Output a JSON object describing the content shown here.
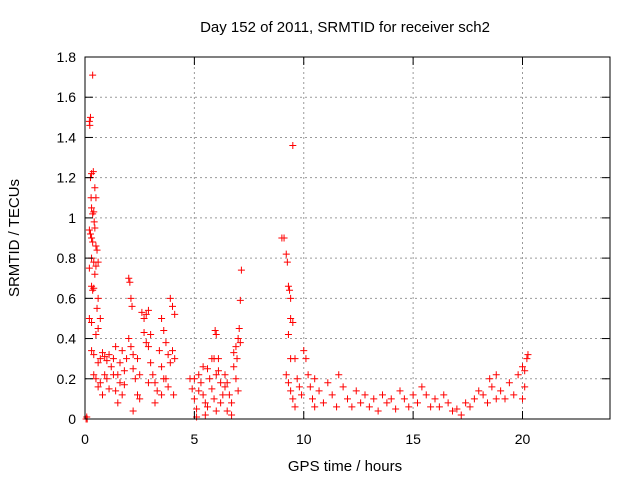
{
  "chart_data": {
    "type": "scatter",
    "title": "Day 152 of 2011, SRMTID for receiver sch2",
    "xlabel": "GPS time / hours",
    "ylabel": "SRMTID / TECUs",
    "xlim": [
      0,
      24
    ],
    "ylim": [
      0,
      1.8
    ],
    "xticks": [
      0,
      5,
      10,
      15,
      20
    ],
    "xtick_labels": [
      "0",
      "5",
      "10",
      "15",
      "20"
    ],
    "yticks": [
      0,
      0.2,
      0.4,
      0.6,
      0.8,
      1.0,
      1.2,
      1.4,
      1.6,
      1.8
    ],
    "ytick_labels": [
      "0",
      "0.2",
      "0.4",
      "0.6",
      "0.8",
      "1",
      "1.2",
      "1.4",
      "1.6",
      "1.8"
    ],
    "grid": true,
    "marker": "plus",
    "color": "#ff0000",
    "series": [
      {
        "name": "sch2",
        "points": [
          [
            0.05,
            0.0
          ],
          [
            0.08,
            0.01
          ],
          [
            0.1,
            0.0
          ],
          [
            0.2,
            1.48
          ],
          [
            0.22,
            1.46
          ],
          [
            0.25,
            1.5
          ],
          [
            0.35,
            1.71
          ],
          [
            0.25,
            1.2
          ],
          [
            0.3,
            1.22
          ],
          [
            0.38,
            1.23
          ],
          [
            0.28,
            1.1
          ],
          [
            0.3,
            1.05
          ],
          [
            0.35,
            1.02
          ],
          [
            0.4,
            1.03
          ],
          [
            0.45,
            1.15
          ],
          [
            0.5,
            1.1
          ],
          [
            0.42,
            0.98
          ],
          [
            0.2,
            0.94
          ],
          [
            0.25,
            0.92
          ],
          [
            0.3,
            0.9
          ],
          [
            0.35,
            0.88
          ],
          [
            0.45,
            0.95
          ],
          [
            0.5,
            0.86
          ],
          [
            0.55,
            0.84
          ],
          [
            0.2,
            0.75
          ],
          [
            0.3,
            0.8
          ],
          [
            0.4,
            0.78
          ],
          [
            0.5,
            0.76
          ],
          [
            0.6,
            0.78
          ],
          [
            0.45,
            0.72
          ],
          [
            0.3,
            0.66
          ],
          [
            0.35,
            0.64
          ],
          [
            0.4,
            0.65
          ],
          [
            0.6,
            0.6
          ],
          [
            0.55,
            0.55
          ],
          [
            0.2,
            0.5
          ],
          [
            0.3,
            0.48
          ],
          [
            0.6,
            0.45
          ],
          [
            0.5,
            0.42
          ],
          [
            0.7,
            0.5
          ],
          [
            0.3,
            0.34
          ],
          [
            0.4,
            0.32
          ],
          [
            0.6,
            0.28
          ],
          [
            0.7,
            0.3
          ],
          [
            0.8,
            0.33
          ],
          [
            0.9,
            0.31
          ],
          [
            1.0,
            0.29
          ],
          [
            1.1,
            0.32
          ],
          [
            0.4,
            0.22
          ],
          [
            0.5,
            0.2
          ],
          [
            0.6,
            0.16
          ],
          [
            0.7,
            0.18
          ],
          [
            0.8,
            0.12
          ],
          [
            0.9,
            0.22
          ],
          [
            1.0,
            0.2
          ],
          [
            1.1,
            0.15
          ],
          [
            1.2,
            0.26
          ],
          [
            1.3,
            0.3
          ],
          [
            1.4,
            0.36
          ],
          [
            1.5,
            0.22
          ],
          [
            1.6,
            0.18
          ],
          [
            1.7,
            0.12
          ],
          [
            1.8,
            0.24
          ],
          [
            1.9,
            0.3
          ],
          [
            1.3,
            0.22
          ],
          [
            1.4,
            0.14
          ],
          [
            1.5,
            0.08
          ],
          [
            1.6,
            0.28
          ],
          [
            1.7,
            0.34
          ],
          [
            1.8,
            0.17
          ],
          [
            2.0,
            0.7
          ],
          [
            2.05,
            0.68
          ],
          [
            2.1,
            0.6
          ],
          [
            2.15,
            0.56
          ],
          [
            2.0,
            0.4
          ],
          [
            2.1,
            0.36
          ],
          [
            2.2,
            0.32
          ],
          [
            2.2,
            0.25
          ],
          [
            2.3,
            0.2
          ],
          [
            2.4,
            0.12
          ],
          [
            2.4,
            0.3
          ],
          [
            2.5,
            0.22
          ],
          [
            2.2,
            0.04
          ],
          [
            2.6,
            0.53
          ],
          [
            2.7,
            0.5
          ],
          [
            2.8,
            0.52
          ],
          [
            2.9,
            0.54
          ],
          [
            2.7,
            0.43
          ],
          [
            2.8,
            0.38
          ],
          [
            2.9,
            0.36
          ],
          [
            3.0,
            0.42
          ],
          [
            3.0,
            0.28
          ],
          [
            3.1,
            0.22
          ],
          [
            3.2,
            0.18
          ],
          [
            3.3,
            0.14
          ],
          [
            3.4,
            0.34
          ],
          [
            3.5,
            0.26
          ],
          [
            3.6,
            0.2
          ],
          [
            3.5,
            0.5
          ],
          [
            3.6,
            0.44
          ],
          [
            3.7,
            0.38
          ],
          [
            3.8,
            0.32
          ],
          [
            3.9,
            0.28
          ],
          [
            3.7,
            0.2
          ],
          [
            3.8,
            0.16
          ],
          [
            3.9,
            0.6
          ],
          [
            4.0,
            0.56
          ],
          [
            4.1,
            0.52
          ],
          [
            4.0,
            0.34
          ],
          [
            4.1,
            0.3
          ],
          [
            4.05,
            0.12
          ],
          [
            2.5,
            0.1
          ],
          [
            2.9,
            0.18
          ],
          [
            3.2,
            0.08
          ],
          [
            3.5,
            0.12
          ],
          [
            4.8,
            0.2
          ],
          [
            4.9,
            0.15
          ],
          [
            5.0,
            0.1
          ],
          [
            5.1,
            0.05
          ],
          [
            5.2,
            0.22
          ],
          [
            5.3,
            0.18
          ],
          [
            5.4,
            0.12
          ],
          [
            5.5,
            0.08
          ],
          [
            5.6,
            0.25
          ],
          [
            5.7,
            0.2
          ],
          [
            5.8,
            0.15
          ],
          [
            5.9,
            0.1
          ],
          [
            6.0,
            0.04
          ],
          [
            6.1,
            0.24
          ],
          [
            6.2,
            0.18
          ],
          [
            6.3,
            0.12
          ],
          [
            5.0,
            0.2
          ],
          [
            5.2,
            0.14
          ],
          [
            5.4,
            0.26
          ],
          [
            5.6,
            0.06
          ],
          [
            5.8,
            0.3
          ],
          [
            6.0,
            0.22
          ],
          [
            6.2,
            0.08
          ],
          [
            6.4,
            0.16
          ],
          [
            5.95,
            0.44
          ],
          [
            6.0,
            0.42
          ],
          [
            5.9,
            0.3
          ],
          [
            6.1,
            0.3
          ],
          [
            6.4,
            0.22
          ],
          [
            6.5,
            0.18
          ],
          [
            6.6,
            0.12
          ],
          [
            6.7,
            0.08
          ],
          [
            6.8,
            0.26
          ],
          [
            6.9,
            0.2
          ],
          [
            7.0,
            0.14
          ],
          [
            6.8,
            0.33
          ],
          [
            6.9,
            0.36
          ],
          [
            7.0,
            0.4
          ],
          [
            7.1,
            0.38
          ],
          [
            7.05,
            0.45
          ],
          [
            6.95,
            0.3
          ],
          [
            7.1,
            0.59
          ],
          [
            7.15,
            0.74
          ],
          [
            6.5,
            0.04
          ],
          [
            6.7,
            0.02
          ],
          [
            5.5,
            0.02
          ],
          [
            5.1,
            0.01
          ],
          [
            9.0,
            0.9
          ],
          [
            9.1,
            0.9
          ],
          [
            9.2,
            0.82
          ],
          [
            9.25,
            0.78
          ],
          [
            9.3,
            0.66
          ],
          [
            9.35,
            0.64
          ],
          [
            9.4,
            0.6
          ],
          [
            9.5,
            1.36
          ],
          [
            9.4,
            0.5
          ],
          [
            9.5,
            0.48
          ],
          [
            9.3,
            0.42
          ],
          [
            9.4,
            0.3
          ],
          [
            9.6,
            0.3
          ],
          [
            9.2,
            0.22
          ],
          [
            9.3,
            0.18
          ],
          [
            9.4,
            0.14
          ],
          [
            9.5,
            0.1
          ],
          [
            9.6,
            0.06
          ],
          [
            9.7,
            0.2
          ],
          [
            9.8,
            0.16
          ],
          [
            9.9,
            0.12
          ],
          [
            10.0,
            0.34
          ],
          [
            10.1,
            0.3
          ],
          [
            10.2,
            0.22
          ],
          [
            10.3,
            0.16
          ],
          [
            10.4,
            0.1
          ],
          [
            10.5,
            0.06
          ],
          [
            10.5,
            0.2
          ],
          [
            10.7,
            0.14
          ],
          [
            10.9,
            0.08
          ],
          [
            11.1,
            0.18
          ],
          [
            11.3,
            0.12
          ],
          [
            11.5,
            0.06
          ],
          [
            11.6,
            0.22
          ],
          [
            11.8,
            0.16
          ],
          [
            12.0,
            0.1
          ],
          [
            12.2,
            0.06
          ],
          [
            12.4,
            0.14
          ],
          [
            12.6,
            0.08
          ],
          [
            12.8,
            0.12
          ],
          [
            13.0,
            0.06
          ],
          [
            13.2,
            0.1
          ],
          [
            13.4,
            0.04
          ],
          [
            13.6,
            0.12
          ],
          [
            13.8,
            0.08
          ],
          [
            14.0,
            0.1
          ],
          [
            14.2,
            0.05
          ],
          [
            14.4,
            0.14
          ],
          [
            14.6,
            0.1
          ],
          [
            14.8,
            0.06
          ],
          [
            15.0,
            0.12
          ],
          [
            15.2,
            0.08
          ],
          [
            15.4,
            0.16
          ],
          [
            15.6,
            0.12
          ],
          [
            15.8,
            0.06
          ],
          [
            16.0,
            0.1
          ],
          [
            16.2,
            0.06
          ],
          [
            16.4,
            0.12
          ],
          [
            16.6,
            0.08
          ],
          [
            16.8,
            0.04
          ],
          [
            17.0,
            0.05
          ],
          [
            17.2,
            0.02
          ],
          [
            17.4,
            0.08
          ],
          [
            17.6,
            0.06
          ],
          [
            17.8,
            0.1
          ],
          [
            18.0,
            0.14
          ],
          [
            18.2,
            0.12
          ],
          [
            18.4,
            0.08
          ],
          [
            18.6,
            0.16
          ],
          [
            18.8,
            0.1
          ],
          [
            18.5,
            0.2
          ],
          [
            18.8,
            0.22
          ],
          [
            19.0,
            0.14
          ],
          [
            19.2,
            0.1
          ],
          [
            19.4,
            0.18
          ],
          [
            19.6,
            0.12
          ],
          [
            19.8,
            0.22
          ],
          [
            20.0,
            0.26
          ],
          [
            20.1,
            0.24
          ],
          [
            20.2,
            0.3
          ],
          [
            20.25,
            0.32
          ],
          [
            20.1,
            0.16
          ],
          [
            20.0,
            0.1
          ]
        ]
      }
    ]
  }
}
